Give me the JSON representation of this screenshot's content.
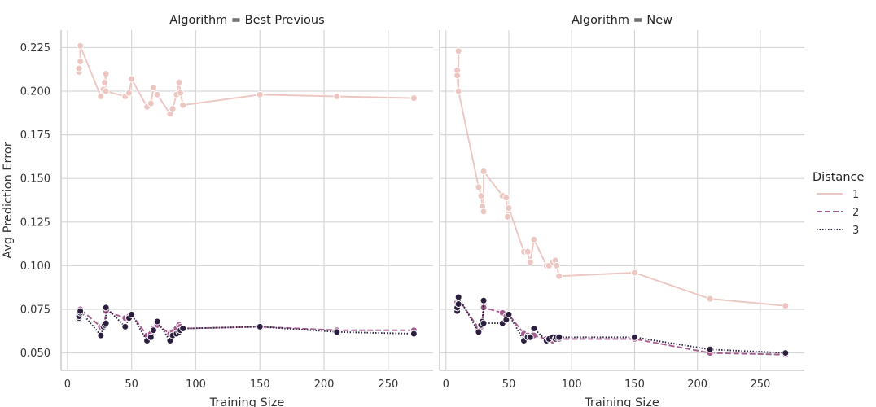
{
  "chart_data": {
    "type": "line",
    "x_label": "Training Size",
    "y_label": "Avg Prediction Error",
    "xlim": [
      -5,
      285
    ],
    "ylim": [
      0.04,
      0.235
    ],
    "x_ticks": [
      0,
      50,
      100,
      150,
      200,
      250
    ],
    "y_ticks": [
      0.05,
      0.075,
      0.1,
      0.125,
      0.15,
      0.175,
      0.2,
      0.225
    ],
    "y_tick_labels": [
      "0.050",
      "0.075",
      "0.100",
      "0.125",
      "0.150",
      "0.175",
      "0.200",
      "0.225"
    ],
    "grid": true,
    "legend": {
      "title": "Distance",
      "placement": "right",
      "entries": [
        {
          "label": "1",
          "color": "#ecc6c0",
          "dash": "solid"
        },
        {
          "label": "2",
          "color": "#a45c8f",
          "dash": "dashed"
        },
        {
          "label": "3",
          "color": "#2c1e3e",
          "dash": "dotted"
        }
      ]
    },
    "panels": [
      {
        "title": "Algorithm = Best Previous",
        "series": [
          {
            "name": "1",
            "color": "#ecc6c0",
            "dash": "solid",
            "x": [
              9,
              9,
              10,
              10,
              26,
              28,
              29,
              30,
              30,
              45,
              48,
              50,
              62,
              65,
              67,
              70,
              80,
              82,
              85,
              87,
              88,
              90,
              150,
              210,
              270
            ],
            "y": [
              0.211,
              0.213,
              0.217,
              0.226,
              0.197,
              0.201,
              0.205,
              0.21,
              0.2,
              0.197,
              0.199,
              0.207,
              0.191,
              0.193,
              0.202,
              0.198,
              0.187,
              0.19,
              0.198,
              0.205,
              0.199,
              0.192,
              0.198,
              0.197,
              0.196
            ]
          },
          {
            "name": "2",
            "color": "#a45c8f",
            "dash": "dashed",
            "x": [
              9,
              9,
              10,
              10,
              26,
              28,
              29,
              30,
              30,
              45,
              48,
              50,
              62,
              65,
              67,
              70,
              80,
              82,
              85,
              87,
              88,
              90,
              150,
              210,
              270
            ],
            "y": [
              0.071,
              0.072,
              0.074,
              0.075,
              0.065,
              0.066,
              0.067,
              0.075,
              0.074,
              0.07,
              0.071,
              0.072,
              0.06,
              0.061,
              0.064,
              0.066,
              0.061,
              0.062,
              0.064,
              0.066,
              0.065,
              0.064,
              0.065,
              0.063,
              0.063
            ]
          },
          {
            "name": "3",
            "color": "#2c1e3e",
            "dash": "dotted",
            "x": [
              9,
              9,
              10,
              10,
              26,
              28,
              29,
              30,
              30,
              45,
              48,
              50,
              62,
              65,
              67,
              70,
              80,
              82,
              85,
              87,
              88,
              90,
              150,
              210,
              270
            ],
            "y": [
              0.07,
              0.071,
              0.073,
              0.074,
              0.06,
              0.065,
              0.066,
              0.067,
              0.076,
              0.065,
              0.07,
              0.072,
              0.057,
              0.059,
              0.063,
              0.068,
              0.057,
              0.06,
              0.061,
              0.062,
              0.063,
              0.064,
              0.065,
              0.062,
              0.061
            ]
          }
        ]
      },
      {
        "title": "Algorithm = New",
        "series": [
          {
            "name": "1",
            "color": "#ecc6c0",
            "dash": "solid",
            "x": [
              9,
              9,
              10,
              10,
              10,
              26,
              28,
              29,
              30,
              30,
              45,
              48,
              49,
              50,
              62,
              65,
              67,
              70,
              80,
              82,
              85,
              87,
              88,
              90,
              150,
              210,
              270
            ],
            "y": [
              0.212,
              0.209,
              0.2,
              0.223,
              0.2,
              0.145,
              0.14,
              0.134,
              0.131,
              0.154,
              0.14,
              0.139,
              0.128,
              0.133,
              0.108,
              0.108,
              0.102,
              0.115,
              0.1,
              0.1,
              0.102,
              0.103,
              0.1,
              0.094,
              0.096,
              0.081,
              0.077
            ]
          },
          {
            "name": "2",
            "color": "#a45c8f",
            "dash": "dashed",
            "x": [
              9,
              9,
              10,
              10,
              26,
              28,
              29,
              30,
              30,
              45,
              48,
              50,
              62,
              65,
              67,
              70,
              80,
              82,
              85,
              87,
              88,
              90,
              150,
              210,
              270
            ],
            "y": [
              0.077,
              0.079,
              0.078,
              0.081,
              0.064,
              0.065,
              0.067,
              0.078,
              0.076,
              0.073,
              0.071,
              0.072,
              0.061,
              0.06,
              0.059,
              0.06,
              0.058,
              0.058,
              0.057,
              0.058,
              0.058,
              0.058,
              0.058,
              0.05,
              0.049
            ]
          },
          {
            "name": "3",
            "color": "#2c1e3e",
            "dash": "dotted",
            "x": [
              9,
              9,
              10,
              10,
              26,
              28,
              29,
              30,
              30,
              45,
              48,
              50,
              62,
              65,
              67,
              70,
              80,
              82,
              85,
              87,
              88,
              90,
              150,
              210,
              270
            ],
            "y": [
              0.074,
              0.076,
              0.078,
              0.082,
              0.062,
              0.066,
              0.068,
              0.08,
              0.067,
              0.067,
              0.069,
              0.072,
              0.057,
              0.059,
              0.059,
              0.064,
              0.057,
              0.058,
              0.059,
              0.058,
              0.059,
              0.059,
              0.059,
              0.052,
              0.05
            ]
          }
        ]
      }
    ]
  }
}
